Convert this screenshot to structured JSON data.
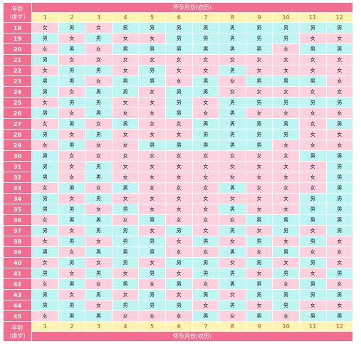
{
  "header": {
    "age_label_1": "年龄",
    "age_label_2": "(虚岁)",
    "month_title": "怀孕月份(农历)"
  },
  "months": [
    "1",
    "2",
    "3",
    "4",
    "5",
    "6",
    "7",
    "8",
    "9",
    "10",
    "11",
    "12"
  ],
  "rows": [
    {
      "age": "18",
      "cells": [
        "女",
        "男",
        "女",
        "男",
        "男",
        "男",
        "男",
        "男",
        "男",
        "男",
        "男",
        "男"
      ]
    },
    {
      "age": "19",
      "cells": [
        "男",
        "女",
        "男",
        "女",
        "女",
        "男",
        "男",
        "男",
        "男",
        "男",
        "女",
        "女"
      ]
    },
    {
      "age": "20",
      "cells": [
        "女",
        "男",
        "女",
        "男",
        "男",
        "男",
        "男",
        "男",
        "男",
        "女",
        "男",
        "男"
      ]
    },
    {
      "age": "21",
      "cells": [
        "男",
        "女",
        "女",
        "女",
        "女",
        "女",
        "女",
        "女",
        "女",
        "女",
        "女",
        "女"
      ]
    },
    {
      "age": "22",
      "cells": [
        "女",
        "男",
        "男",
        "女",
        "男",
        "女",
        "女",
        "男",
        "女",
        "女",
        "女",
        "女"
      ]
    },
    {
      "age": "23",
      "cells": [
        "男",
        "男",
        "女",
        "男",
        "男",
        "女",
        "男",
        "女",
        "男",
        "男",
        "男",
        "女"
      ]
    },
    {
      "age": "24",
      "cells": [
        "男",
        "女",
        "男",
        "男",
        "女",
        "男",
        "男",
        "女",
        "女",
        "女",
        "女",
        "女"
      ]
    },
    {
      "age": "25",
      "cells": [
        "女",
        "男",
        "男",
        "女",
        "女",
        "男",
        "女",
        "男",
        "男",
        "男",
        "男",
        "男"
      ]
    },
    {
      "age": "26",
      "cells": [
        "男",
        "女",
        "男",
        "女",
        "女",
        "男",
        "女",
        "男",
        "女",
        "女",
        "女",
        "女"
      ]
    },
    {
      "age": "27",
      "cells": [
        "女",
        "男",
        "女",
        "男",
        "女",
        "女",
        "男",
        "男",
        "男",
        "男",
        "女",
        "男"
      ]
    },
    {
      "age": "28",
      "cells": [
        "男",
        "女",
        "男",
        "女",
        "女",
        "女",
        "男",
        "男",
        "男",
        "男",
        "女",
        "女"
      ]
    },
    {
      "age": "29",
      "cells": [
        "女",
        "男",
        "女",
        "女",
        "男",
        "男",
        "男",
        "男",
        "男",
        "女",
        "女",
        "女"
      ]
    },
    {
      "age": "30",
      "cells": [
        "男",
        "女",
        "女",
        "女",
        "女",
        "女",
        "女",
        "女",
        "女",
        "女",
        "男",
        "男"
      ]
    },
    {
      "age": "31",
      "cells": [
        "男",
        "女",
        "男",
        "女",
        "女",
        "女",
        "女",
        "女",
        "女",
        "女",
        "女",
        "男"
      ]
    },
    {
      "age": "32",
      "cells": [
        "男",
        "女",
        "男",
        "女",
        "女",
        "女",
        "女",
        "女",
        "女",
        "女",
        "女",
        "男"
      ]
    },
    {
      "age": "33",
      "cells": [
        "女",
        "男",
        "女",
        "男",
        "女",
        "女",
        "女",
        "男",
        "女",
        "女",
        "女",
        "男"
      ]
    },
    {
      "age": "34",
      "cells": [
        "男",
        "女",
        "男",
        "女",
        "女",
        "女",
        "女",
        "女",
        "女",
        "女",
        "男",
        "男"
      ]
    },
    {
      "age": "35",
      "cells": [
        "男",
        "男",
        "女",
        "男",
        "女",
        "女",
        "女",
        "男",
        "女",
        "女",
        "男",
        "男"
      ]
    },
    {
      "age": "36",
      "cells": [
        "女",
        "男",
        "男",
        "女",
        "男",
        "女",
        "女",
        "女",
        "男",
        "男",
        "男",
        "男"
      ]
    },
    {
      "age": "37",
      "cells": [
        "男",
        "女",
        "男",
        "男",
        "女",
        "男",
        "女",
        "男",
        "女",
        "男",
        "女",
        "男"
      ]
    },
    {
      "age": "38",
      "cells": [
        "女",
        "男",
        "女",
        "男",
        "男",
        "女",
        "男",
        "女",
        "男",
        "女",
        "男",
        "女"
      ]
    },
    {
      "age": "39",
      "cells": [
        "男",
        "女",
        "男",
        "男",
        "男",
        "女",
        "女",
        "男",
        "女",
        "男",
        "女",
        "女"
      ]
    },
    {
      "age": "40",
      "cells": [
        "女",
        "男",
        "女",
        "男",
        "女",
        "男",
        "男",
        "女",
        "男",
        "女",
        "男",
        "女"
      ]
    },
    {
      "age": "41",
      "cells": [
        "男",
        "女",
        "男",
        "女",
        "男",
        "女",
        "男",
        "男",
        "女",
        "男",
        "女",
        "男"
      ]
    },
    {
      "age": "42",
      "cells": [
        "女",
        "男",
        "女",
        "男",
        "女",
        "男",
        "女",
        "男",
        "男",
        "女",
        "男",
        "女"
      ]
    },
    {
      "age": "43",
      "cells": [
        "男",
        "女",
        "男",
        "女",
        "男",
        "女",
        "男",
        "女",
        "男",
        "男",
        "男",
        "男"
      ]
    },
    {
      "age": "44",
      "cells": [
        "男",
        "男",
        "女",
        "男",
        "男",
        "男",
        "女",
        "男",
        "女",
        "男",
        "女",
        "女"
      ]
    },
    {
      "age": "45",
      "cells": [
        "女",
        "男",
        "男",
        "女",
        "女",
        "女",
        "男",
        "女",
        "男",
        "女",
        "男",
        "男"
      ]
    }
  ],
  "colors": {
    "header": "#f36d8f",
    "month_row": "#fff4b0",
    "female_cell": "#ffd1de",
    "male_cell": "#bdf5f5"
  }
}
